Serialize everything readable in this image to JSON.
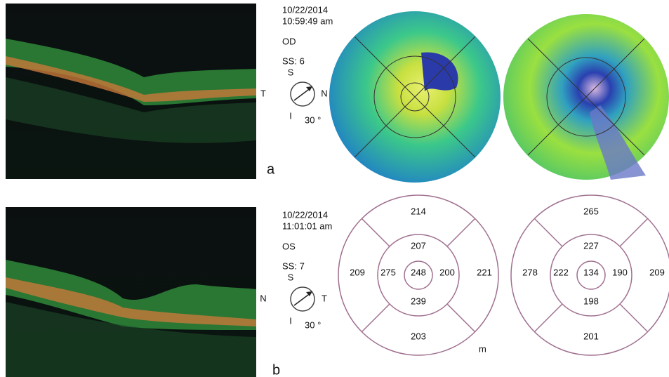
{
  "panels": [
    {
      "label": "a",
      "date": "10/22/2014",
      "time": "10:59:49 am",
      "eye": "OD",
      "signal": "SS: 6",
      "compass": {
        "top": "S",
        "left": "T",
        "right": "N",
        "bottom": "I",
        "angle": "30 °"
      }
    },
    {
      "label": "b",
      "date": "10/22/2014",
      "time": "11:01:01 am",
      "eye": "OS",
      "signal": "SS: 7",
      "compass": {
        "top": "S",
        "left": "N",
        "right": "T",
        "bottom": "I",
        "angle": "30 °"
      }
    }
  ],
  "grids": [
    {
      "cells": [
        214,
        207,
        209,
        275,
        248,
        200,
        221,
        239,
        203
      ],
      "note": "m"
    },
    {
      "cells": [
        265,
        227,
        278,
        222,
        134,
        190,
        209,
        198,
        201
      ]
    }
  ]
}
